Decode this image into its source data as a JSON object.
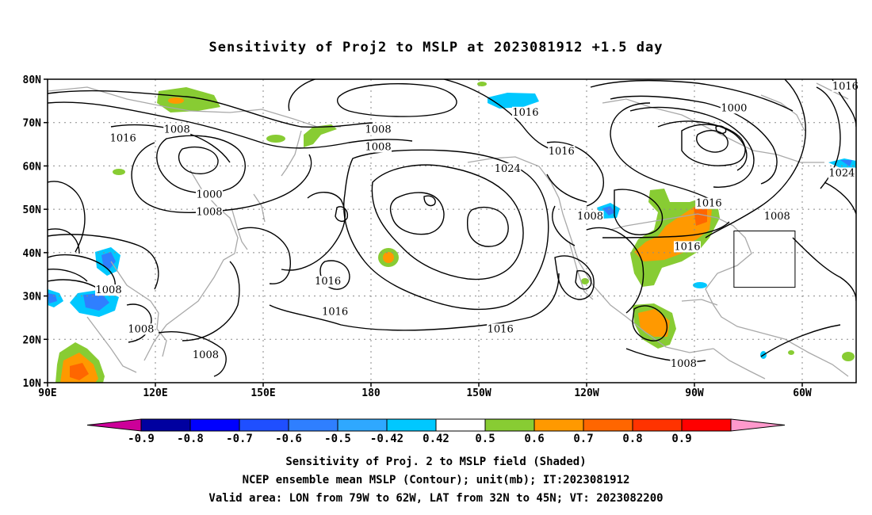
{
  "title": "Sensitivity of Proj2 to MSLP at 2023081912 +1.5 day",
  "map": {
    "lon_labels": [
      "90E",
      "120E",
      "150E",
      "180",
      "150W",
      "120W",
      "90W",
      "60W"
    ],
    "lat_labels": [
      "80N",
      "70N",
      "60N",
      "50N",
      "40N",
      "30N",
      "20N",
      "10N"
    ],
    "region": {
      "lon_min": 90,
      "lon_max": 315,
      "lat_min": 10,
      "lat_max": 80
    },
    "valid_box": {
      "lon_min": -79,
      "lon_max": -62,
      "lat_min": 32,
      "lat_max": 45
    },
    "contour_labels": [
      {
        "text": "1016",
        "lon": 111,
        "lat": 66
      },
      {
        "text": "1008",
        "lon": 126,
        "lat": 68
      },
      {
        "text": "1008",
        "lon": 182,
        "lat": 68
      },
      {
        "text": "1008",
        "lon": 182,
        "lat": 64
      },
      {
        "text": "1000",
        "lon": 135,
        "lat": 53
      },
      {
        "text": "1008",
        "lon": 135,
        "lat": 49
      },
      {
        "text": "1008",
        "lon": 107,
        "lat": 31
      },
      {
        "text": "1008",
        "lon": 116,
        "lat": 22
      },
      {
        "text": "1008",
        "lon": 134,
        "lat": 16
      },
      {
        "text": "1016",
        "lon": 168,
        "lat": 33
      },
      {
        "text": "1016",
        "lon": 170,
        "lat": 26
      },
      {
        "text": "1016",
        "lon": 223,
        "lat": 72
      },
      {
        "text": "1024",
        "lon": 218,
        "lat": 59
      },
      {
        "text": "1016",
        "lon": 233,
        "lat": 63
      },
      {
        "text": "1016",
        "lon": 216,
        "lat": 22
      },
      {
        "text": "1008",
        "lon": 241,
        "lat": 48
      },
      {
        "text": "1016",
        "lon": 274,
        "lat": 51
      },
      {
        "text": "1016",
        "lon": 268,
        "lat": 41
      },
      {
        "text": "1000",
        "lon": 281,
        "lat": 73
      },
      {
        "text": "1008",
        "lon": 293,
        "lat": 48
      },
      {
        "text": "1016",
        "lon": 312,
        "lat": 78
      },
      {
        "text": "1024",
        "lon": 311,
        "lat": 58
      },
      {
        "text": "1008",
        "lon": 267,
        "lat": 14
      }
    ]
  },
  "colorbar": {
    "tick_labels": [
      "-0.9",
      "-0.8",
      "-0.7",
      "-0.6",
      "-0.5",
      "-0.42",
      "0.42",
      "0.5",
      "0.6",
      "0.7",
      "0.8",
      "0.9"
    ],
    "colors": [
      "#cc0099",
      "#0000a0",
      "#0000ff",
      "#1f4fff",
      "#2f7fff",
      "#2fa8ff",
      "#00c8ff",
      "#ffffff",
      "#88cc33",
      "#ff9900",
      "#ff6600",
      "#ff3300",
      "#ff0000",
      "#ff99cc"
    ]
  },
  "captions": {
    "line1": "Sensitivity of Proj. 2 to MSLP field (Shaded)",
    "line2": "NCEP ensemble mean MSLP (Contour); unit(mb); IT:2023081912",
    "line3": "Valid area: LON from 79W to 62W, LAT from 32N to 45N; VT: 2023082200"
  }
}
